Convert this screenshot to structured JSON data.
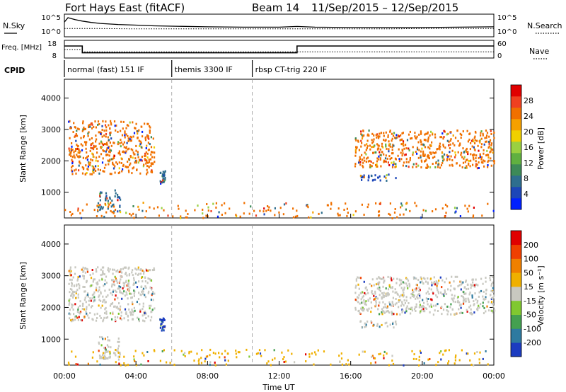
{
  "header": {
    "station": "Fort Hays East (fitACF)",
    "beam": "Beam 14",
    "date_range": "11/Sep/2015 – 12/Sep/2015"
  },
  "chart_data": [
    {
      "type": "line",
      "panel": "noise",
      "left_label": "N.Sky",
      "right_label": "N.Search",
      "left_ticks": [
        "10^5",
        "10^0"
      ],
      "right_ticks": [
        "10^5",
        "10^0"
      ],
      "series": [
        {
          "name": "N.Sky",
          "style": "solid",
          "x": [
            0.0,
            0.2,
            0.4,
            0.6,
            1,
            1.5,
            2,
            3,
            4,
            5,
            6,
            8,
            10,
            12,
            13,
            14,
            16,
            18,
            20,
            22,
            24
          ],
          "y": [
            3.5,
            4.8,
            4.5,
            4.2,
            3.8,
            3.4,
            3.1,
            2.8,
            2.6,
            2.4,
            2.3,
            2.1,
            2.0,
            2.0,
            2.2,
            2.0,
            1.9,
            1.9,
            1.9,
            2.0,
            2.1
          ]
        },
        {
          "name": "N.Search",
          "style": "dotted",
          "x": [
            0,
            2,
            4,
            6,
            8,
            10,
            12,
            14,
            16,
            18,
            20,
            22,
            24
          ],
          "y": [
            1.6,
            1.6,
            1.5,
            1.5,
            1.5,
            1.5,
            1.5,
            1.5,
            1.5,
            1.5,
            1.6,
            1.6,
            1.6
          ]
        }
      ]
    },
    {
      "type": "line",
      "panel": "frequency",
      "left_label": "Freq. [MHz]",
      "right_label": "Nave",
      "left_ticks": [
        "18",
        "8"
      ],
      "right_ticks": [
        "60",
        "0"
      ],
      "series": [
        {
          "name": "Freq.",
          "style": "solid",
          "x": [
            0,
            1,
            1,
            13,
            13,
            24
          ],
          "y": [
            15.5,
            15.5,
            10.7,
            10.7,
            15.5,
            15.5
          ]
        },
        {
          "name": "Nave",
          "style": "dotted",
          "x": [
            0,
            1,
            1,
            24
          ],
          "y": [
            30,
            30,
            20,
            20
          ]
        }
      ]
    },
    {
      "type": "table",
      "panel": "cpid",
      "label": "CPID",
      "segments": [
        {
          "start": 0,
          "end": 6,
          "text": "normal (fast) 151 IF"
        },
        {
          "start": 6,
          "end": 10.5,
          "text": "themis 3300 IF"
        },
        {
          "start": 10.5,
          "end": 24,
          "text": "rbsp CT-trig 220 IF"
        }
      ]
    },
    {
      "type": "heatmap",
      "panel": "power",
      "xlabel": "",
      "ylabel": "Slant Range [km]",
      "xlim": [
        0,
        24
      ],
      "ylim": [
        180,
        4600
      ],
      "yticks": [
        "1000",
        "2000",
        "3000",
        "4000"
      ],
      "colorbar": {
        "label": "Power [dB]",
        "ticks": [
          "4",
          "8",
          "12",
          "16",
          "20",
          "24",
          "28"
        ],
        "range": [
          0,
          32
        ],
        "colors": [
          "#0020ff",
          "#1c46b8",
          "#2e6e8e",
          "#3d8a58",
          "#60b040",
          "#9ad040",
          "#f0d000",
          "#f5a000",
          "#f07000",
          "#f04020",
          "#e00000"
        ]
      },
      "regions": [
        {
          "t0": 0.2,
          "t1": 5.0,
          "r0": 1600,
          "r1": 3300,
          "color": "#f07000"
        },
        {
          "t0": 1.8,
          "t1": 3.1,
          "r0": 380,
          "r1": 1100,
          "color": "#2e6e8e"
        },
        {
          "t0": 0.0,
          "t1": 24.0,
          "r0": 200,
          "r1": 700,
          "color": "#f07000"
        },
        {
          "t0": 5.3,
          "t1": 5.6,
          "r0": 1300,
          "r1": 1700,
          "color": "#2e6e8e"
        },
        {
          "t0": 16.2,
          "t1": 24.0,
          "r0": 1800,
          "r1": 3000,
          "color": "#f07000"
        },
        {
          "t0": 16.5,
          "t1": 18.5,
          "r0": 1400,
          "r1": 1600,
          "color": "#1c46b8"
        }
      ]
    },
    {
      "type": "heatmap",
      "panel": "velocity",
      "xlabel": "Time UT",
      "ylabel": "Slant Range [km]",
      "xlim": [
        0,
        24
      ],
      "ylim": [
        180,
        4600
      ],
      "yticks": [
        "1000",
        "2000",
        "3000",
        "4000"
      ],
      "xticks": [
        "00:00",
        "04:00",
        "08:00",
        "12:00",
        "16:00",
        "20:00",
        "00:00"
      ],
      "colorbar": {
        "label": "Velocity [m s⁻¹]",
        "ticks": [
          "200",
          "100",
          "50",
          "15",
          "-15",
          "-50",
          "-100",
          "-200"
        ],
        "colors": [
          "#1c3cc0",
          "#2e7aa0",
          "#44a050",
          "#80c830",
          "#c8c8c0",
          "#f0b000",
          "#f08000",
          "#f04000",
          "#e00000"
        ]
      },
      "regions": [
        {
          "t0": 0.2,
          "t1": 5.0,
          "r0": 1600,
          "r1": 3300,
          "color": "#c8c8c0"
        },
        {
          "t0": 1.8,
          "t1": 3.1,
          "r0": 380,
          "r1": 1100,
          "color": "#c8c8c0"
        },
        {
          "t0": 0.0,
          "t1": 24.0,
          "r0": 200,
          "r1": 700,
          "color": "#f0b000"
        },
        {
          "t0": 5.3,
          "t1": 5.6,
          "r0": 1300,
          "r1": 1700,
          "color": "#1c3cc0"
        },
        {
          "t0": 16.2,
          "t1": 24.0,
          "r0": 1800,
          "r1": 3000,
          "color": "#c8c8c0"
        },
        {
          "t0": 16.5,
          "t1": 18.5,
          "r0": 1400,
          "r1": 1600,
          "color": "#c8c8c0"
        }
      ]
    }
  ]
}
